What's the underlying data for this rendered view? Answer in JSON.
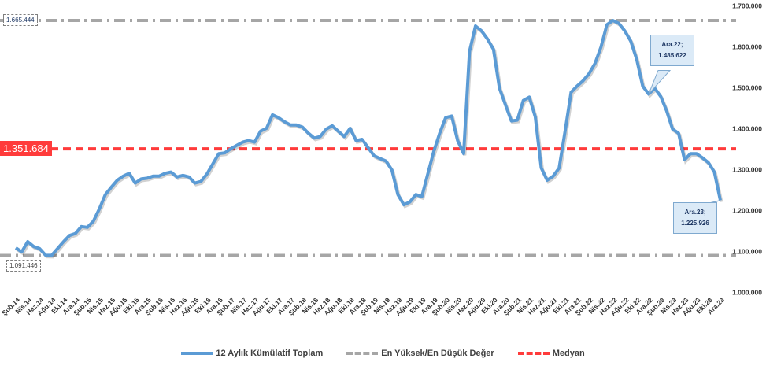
{
  "chart_data": {
    "type": "line",
    "categories": [
      "Şub.14",
      null,
      "Nis.14",
      null,
      "Haz.14",
      null,
      "Ağu.14",
      null,
      "Eki.14",
      null,
      "Ara.14",
      null,
      "Şub.15",
      null,
      "Nis.15",
      null,
      "Haz.15",
      null,
      "Ağu.15",
      null,
      "Eki.15",
      null,
      "Ara.15",
      null,
      "Şub.16",
      null,
      "Nis.16",
      null,
      "Haz.16",
      null,
      "Ağu.16",
      null,
      "Eki.16",
      null,
      "Ara.16",
      null,
      "Şub.17",
      null,
      "Nis.17",
      null,
      "Haz.17",
      null,
      "Ağu.17",
      null,
      "Eki.17",
      null,
      "Ara.17",
      null,
      "Şub.18",
      null,
      "Nis.18",
      null,
      "Haz.18",
      null,
      "Ağu.18",
      null,
      "Eki.18",
      null,
      "Ara.18",
      null,
      "Şub.19",
      null,
      "Nis.19",
      null,
      "Haz.19",
      null,
      "Ağu.19",
      null,
      "Eki.19",
      null,
      "Ara.19",
      null,
      "Şub.20",
      null,
      "Nis.20",
      null,
      "Haz.20",
      null,
      "Ağu.20",
      null,
      "Eki.20",
      null,
      "Ara.20",
      null,
      "Şub.21",
      null,
      "Nis.21",
      null,
      "Haz.21",
      null,
      "Ağu.21",
      null,
      "Eki.21",
      null,
      "Ara.21",
      null,
      "Şub.22",
      null,
      "Nis.22",
      null,
      "Haz.22",
      null,
      "Ağu.22",
      null,
      "Eki.22",
      null,
      "Ara.22",
      null,
      "Şub.23",
      null,
      "Nis.23",
      null,
      "Haz.23",
      null,
      "Ağu.23",
      null,
      "Eki.23",
      null,
      "Ara.23"
    ],
    "series": [
      {
        "name": "12 Aylık Kümülatif Toplam",
        "color": "#5b9bd5",
        "values": [
          1110000,
          1100000,
          1125000,
          1113000,
          1108000,
          1092000,
          1091446,
          1108000,
          1125000,
          1140000,
          1145000,
          1162000,
          1160000,
          1175000,
          1205000,
          1240000,
          1258000,
          1275000,
          1285000,
          1292000,
          1268000,
          1278000,
          1280000,
          1285000,
          1285000,
          1292000,
          1295000,
          1283000,
          1287000,
          1283000,
          1268000,
          1272000,
          1290000,
          1315000,
          1340000,
          1342000,
          1352000,
          1360000,
          1368000,
          1372000,
          1368000,
          1395000,
          1402000,
          1435000,
          1428000,
          1418000,
          1410000,
          1410000,
          1405000,
          1390000,
          1378000,
          1382000,
          1400000,
          1408000,
          1395000,
          1382000,
          1402000,
          1372000,
          1375000,
          1355000,
          1335000,
          1328000,
          1322000,
          1300000,
          1240000,
          1215000,
          1222000,
          1240000,
          1235000,
          1290000,
          1345000,
          1390000,
          1428000,
          1432000,
          1372000,
          1340000,
          1590000,
          1652000,
          1640000,
          1620000,
          1595000,
          1500000,
          1460000,
          1420000,
          1422000,
          1470000,
          1478000,
          1430000,
          1305000,
          1275000,
          1285000,
          1305000,
          1395000,
          1490000,
          1505000,
          1518000,
          1535000,
          1560000,
          1600000,
          1655000,
          1665444,
          1658000,
          1640000,
          1615000,
          1570000,
          1505000,
          1485622,
          1500000,
          1480000,
          1445000,
          1400000,
          1390000,
          1325000,
          1340000,
          1340000,
          1330000,
          1318000,
          1295000,
          1225926
        ],
        "value_labels": [
          null,
          null,
          null,
          null,
          null,
          null,
          null,
          null,
          null,
          null,
          null,
          null,
          null,
          null,
          null,
          null,
          null,
          null,
          null,
          null,
          null,
          null,
          null,
          null,
          null,
          null,
          null,
          null,
          null,
          null,
          null,
          null,
          null,
          null,
          null,
          null,
          null,
          null,
          null,
          null,
          null,
          null,
          null,
          null,
          null,
          null,
          null,
          null,
          null,
          null,
          null,
          null,
          null,
          null,
          null,
          null,
          null,
          null,
          null,
          null,
          null,
          null,
          null,
          null,
          null,
          null,
          null,
          null,
          null,
          null,
          null,
          null,
          null,
          null,
          null,
          null,
          null,
          null,
          null,
          null,
          null,
          null,
          null,
          null,
          null,
          null,
          null,
          null,
          null,
          null,
          null,
          null,
          null,
          null,
          null,
          null,
          null,
          null,
          null,
          null,
          null,
          null,
          null,
          null,
          null,
          null,
          "Ara.22; 1.485.622",
          null,
          null,
          null,
          null,
          null,
          null,
          null,
          null,
          null,
          null,
          null,
          "Ara.23; 1.225.926"
        ]
      }
    ],
    "reference_lines": [
      {
        "name": "En Yüksek/En Düşük Değer",
        "color": "#a6a6a6",
        "values": [
          1665444,
          1091446
        ],
        "value_labels": [
          "1.665.444",
          "1.091.446"
        ]
      },
      {
        "name": "Medyan",
        "color": "#ff3b3b",
        "values": [
          1351684
        ],
        "value_labels": [
          "1.351.684"
        ]
      }
    ],
    "ylim": [
      1000000,
      1700000
    ],
    "yticks": [
      {
        "value": 1000000,
        "label": "1.000.000"
      },
      {
        "value": 1100000,
        "label": "1.100.000"
      },
      {
        "value": 1200000,
        "label": "1.200.000"
      },
      {
        "value": 1300000,
        "label": "1.300.000"
      },
      {
        "value": 1400000,
        "label": "1.400.000"
      },
      {
        "value": 1500000,
        "label": "1.500.000"
      },
      {
        "value": 1600000,
        "label": "1.600.000"
      },
      {
        "value": 1700000,
        "label": "1.700.000"
      }
    ],
    "legend": "bottom"
  }
}
